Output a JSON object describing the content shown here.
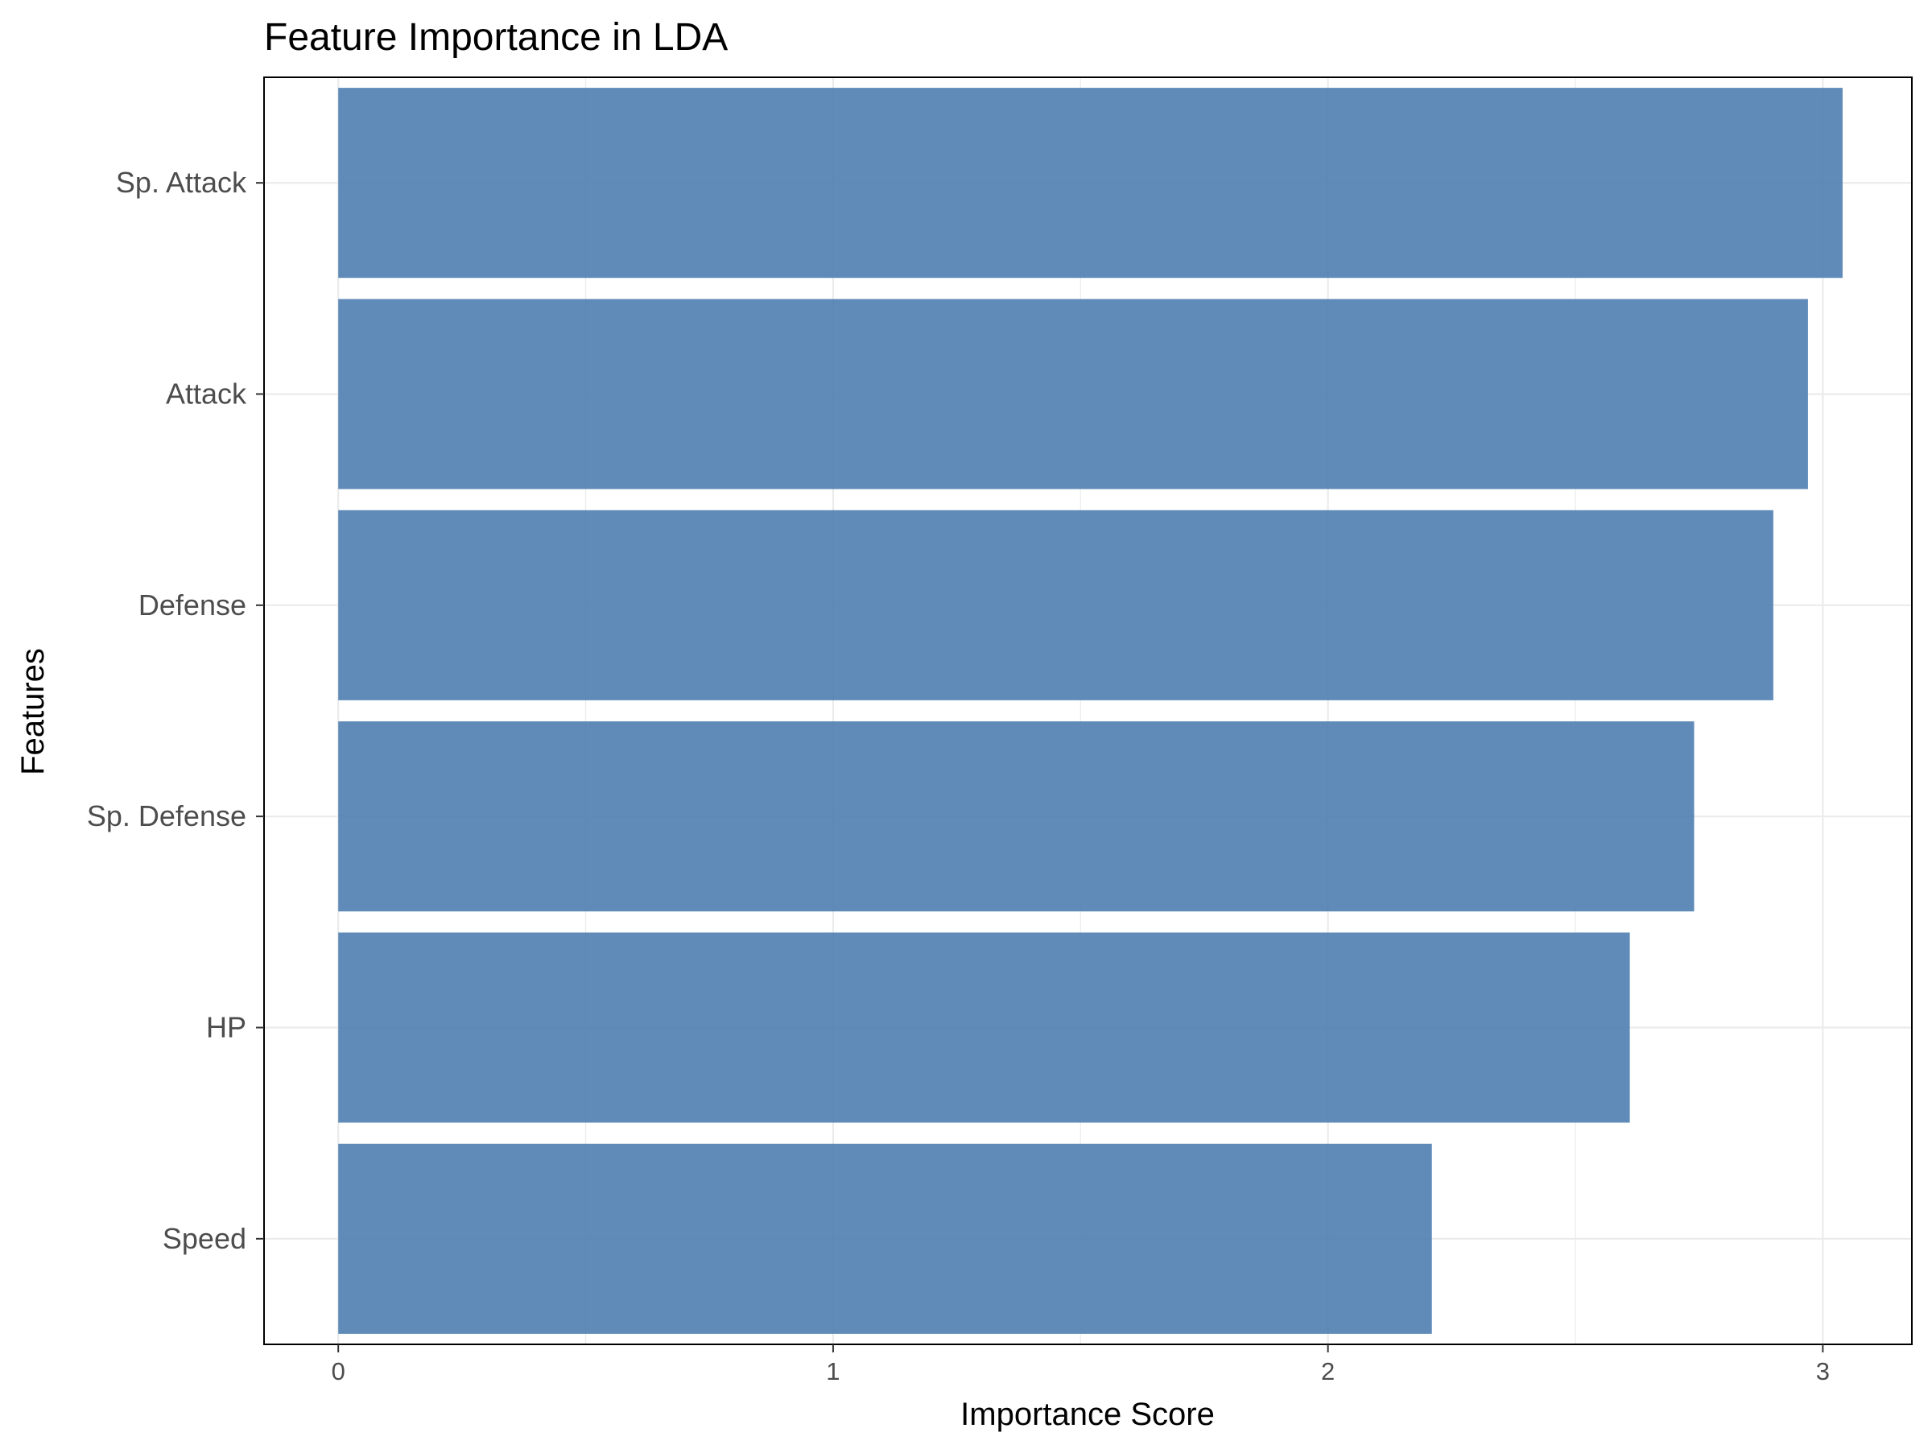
{
  "chart_data": {
    "type": "bar",
    "orientation": "horizontal",
    "title": "Feature Importance in LDA",
    "xlabel": "Importance Score",
    "ylabel": "Features",
    "categories": [
      "Speed",
      "HP",
      "Sp. Defense",
      "Defense",
      "Attack",
      "Sp. Attack"
    ],
    "values": [
      2.21,
      2.61,
      2.74,
      2.9,
      2.97,
      3.04
    ],
    "xlim": [
      -0.15,
      3.18
    ],
    "xticks": [
      "0",
      "1",
      "2",
      "3"
    ],
    "grid": true,
    "legend": "none",
    "bar_color": "#4f7eb0"
  }
}
